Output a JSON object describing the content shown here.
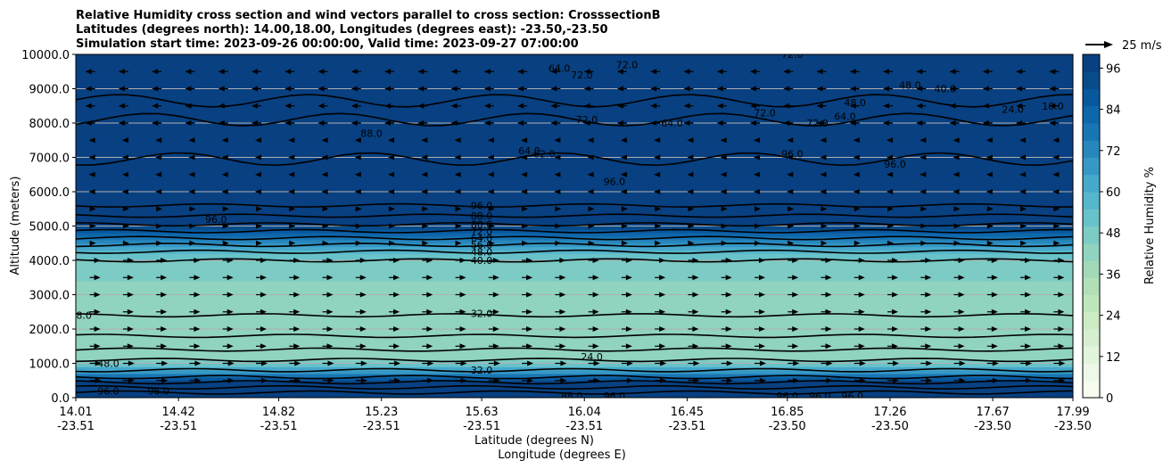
{
  "chart_data": {
    "type": "heatmap",
    "title_lines": [
      "Relative Humidity cross section and wind vectors parallel to cross section: CrosssectionB",
      "Latitudes (degrees north): 14.00,18.00, Longitudes (degrees east): -23.50,-23.50",
      "Simulation start time: 2023-09-26 00:00:00, Valid time: 2023-09-27 07:00:00"
    ],
    "xlabel_lines": [
      "Latitude (degrees N)",
      "Longitude (degrees E)"
    ],
    "ylabel": "Altitude (meters)",
    "xticks": [
      {
        "lat": "14.01",
        "lon": "-23.51"
      },
      {
        "lat": "14.42",
        "lon": "-23.51"
      },
      {
        "lat": "14.82",
        "lon": "-23.51"
      },
      {
        "lat": "15.23",
        "lon": "-23.51"
      },
      {
        "lat": "15.63",
        "lon": "-23.51"
      },
      {
        "lat": "16.04",
        "lon": "-23.51"
      },
      {
        "lat": "16.45",
        "lon": "-23.51"
      },
      {
        "lat": "16.85",
        "lon": "-23.50"
      },
      {
        "lat": "17.26",
        "lon": "-23.50"
      },
      {
        "lat": "17.67",
        "lon": "-23.50"
      },
      {
        "lat": "17.99",
        "lon": "-23.50"
      }
    ],
    "yticks": [
      "0.0",
      "1000.0",
      "2000.0",
      "3000.0",
      "4000.0",
      "5000.0",
      "6000.0",
      "7000.0",
      "8000.0",
      "9000.0",
      "10000.0"
    ],
    "ylim": [
      0,
      10000
    ],
    "grid": "horizontal",
    "colorbar": {
      "label": "Relative Humidity %",
      "ticks": [
        "0",
        "12",
        "24",
        "36",
        "48",
        "60",
        "72",
        "84",
        "96"
      ],
      "range": [
        0,
        100
      ],
      "levels_step": 4,
      "colors": [
        "#f7fcf0",
        "#eef8e8",
        "#e3f4dd",
        "#d7efd1",
        "#cdebc5",
        "#c0e6bd",
        "#b1e0b6",
        "#a2d9b9",
        "#90d3bf",
        "#7ccbc4",
        "#68c2c9",
        "#56b6cb",
        "#46a8cb",
        "#3698c5",
        "#2787bd",
        "#1976b4",
        "#0e66ab",
        "#08589e",
        "#084c8c",
        "#084081"
      ]
    },
    "wind_reference": "25 m/s",
    "humidity_profile": [
      {
        "alt": 0,
        "rh": 96
      },
      {
        "alt": 300,
        "rh": 88
      },
      {
        "alt": 600,
        "rh": 60
      },
      {
        "alt": 1000,
        "rh": 36
      },
      {
        "alt": 2000,
        "rh": 32
      },
      {
        "alt": 3000,
        "rh": 34
      },
      {
        "alt": 4000,
        "rh": 40
      },
      {
        "alt": 4500,
        "rh": 56
      },
      {
        "alt": 5000,
        "rh": 80
      },
      {
        "alt": 5500,
        "rh": 92
      },
      {
        "alt": 6000,
        "rh": 96
      },
      {
        "alt": 7000,
        "rh": 94
      },
      {
        "alt": 8000,
        "rh": 88
      },
      {
        "alt": 9000,
        "rh": 84
      },
      {
        "alt": 10000,
        "rh": 80
      }
    ],
    "contour_labels": [
      {
        "text": "96.0",
        "lat": 15.63,
        "alt": 5600
      },
      {
        "text": "88.0",
        "lat": 15.63,
        "alt": 5300
      },
      {
        "text": "80.0",
        "lat": 15.63,
        "alt": 5050
      },
      {
        "text": "72.0",
        "lat": 15.63,
        "alt": 4850
      },
      {
        "text": "64.0",
        "lat": 15.63,
        "alt": 4650
      },
      {
        "text": "56.0",
        "lat": 15.63,
        "alt": 4450
      },
      {
        "text": "48.0",
        "lat": 15.63,
        "alt": 4250
      },
      {
        "text": "40.0",
        "lat": 15.63,
        "alt": 4000
      },
      {
        "text": "32.0",
        "lat": 15.63,
        "alt": 2450
      },
      {
        "text": "24.0",
        "lat": 16.07,
        "alt": 1200
      },
      {
        "text": "32.0",
        "lat": 15.63,
        "alt": 800
      },
      {
        "text": "48.0",
        "lat": 14.03,
        "alt": 2400
      },
      {
        "text": "48.0",
        "lat": 14.14,
        "alt": 1000
      },
      {
        "text": "96.0",
        "lat": 14.14,
        "alt": 200
      },
      {
        "text": "96.0",
        "lat": 14.34,
        "alt": 200
      },
      {
        "text": "96.0",
        "lat": 14.57,
        "alt": 5200
      },
      {
        "text": "88.0",
        "lat": 15.19,
        "alt": 7700
      },
      {
        "text": "64.0",
        "lat": 15.82,
        "alt": 7200
      },
      {
        "text": "72.0",
        "lat": 16.05,
        "alt": 8100
      },
      {
        "text": "62.0",
        "lat": 15.88,
        "alt": 7100
      },
      {
        "text": "64.0",
        "lat": 15.94,
        "alt": 9600
      },
      {
        "text": "72.0",
        "lat": 16.03,
        "alt": 9400
      },
      {
        "text": "72.0",
        "lat": 16.21,
        "alt": 9700
      },
      {
        "text": "64.0",
        "lat": 16.39,
        "alt": 8000
      },
      {
        "text": "72.0",
        "lat": 16.76,
        "alt": 8300
      },
      {
        "text": "72.0",
        "lat": 16.87,
        "alt": 10000
      },
      {
        "text": "72.0",
        "lat": 16.97,
        "alt": 8000
      },
      {
        "text": "64.0",
        "lat": 17.08,
        "alt": 8200
      },
      {
        "text": "96.0",
        "lat": 16.16,
        "alt": 6300
      },
      {
        "text": "96.0",
        "lat": 16.87,
        "alt": 7100
      },
      {
        "text": "96.0",
        "lat": 17.28,
        "alt": 6800
      },
      {
        "text": "48.0",
        "lat": 17.12,
        "alt": 8600
      },
      {
        "text": "48.0",
        "lat": 17.34,
        "alt": 9100
      },
      {
        "text": "40.0",
        "lat": 17.48,
        "alt": 9000
      },
      {
        "text": "24.0",
        "lat": 17.75,
        "alt": 8400
      },
      {
        "text": "16.0",
        "lat": 17.91,
        "alt": 8500
      },
      {
        "text": "88.0",
        "lat": 15.99,
        "alt": 50
      },
      {
        "text": "96.0",
        "lat": 16.16,
        "alt": 50
      },
      {
        "text": "96.0",
        "lat": 16.85,
        "alt": 50
      },
      {
        "text": "96.0",
        "lat": 16.98,
        "alt": 50
      },
      {
        "text": "96.0",
        "lat": 17.11,
        "alt": 50
      }
    ]
  }
}
